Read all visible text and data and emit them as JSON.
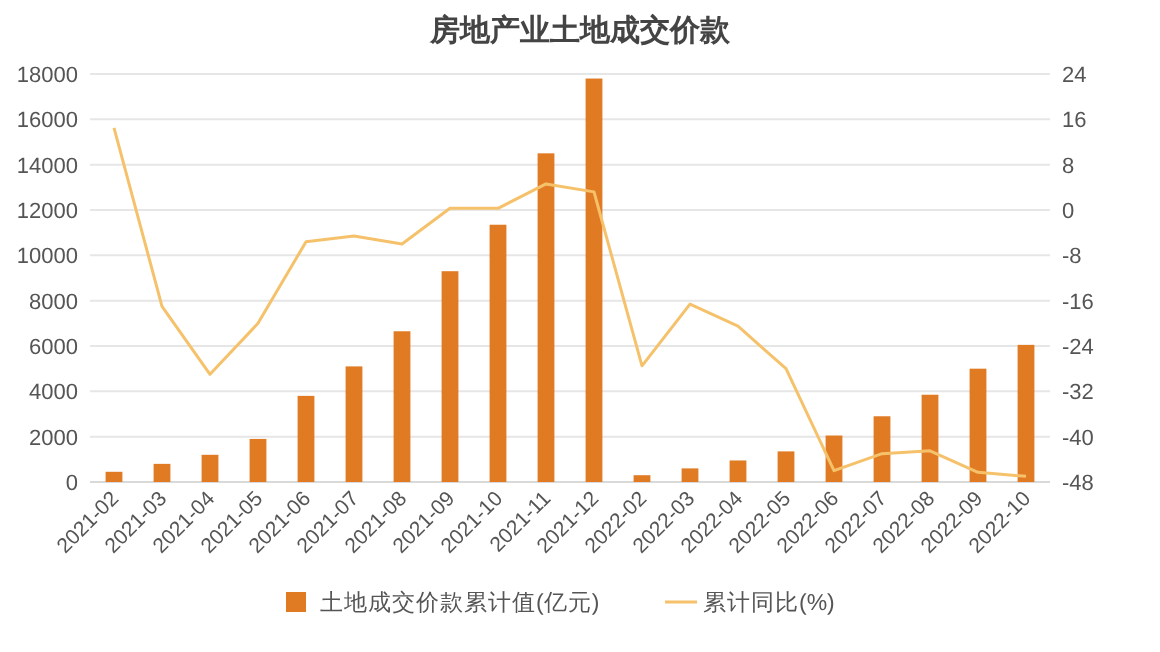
{
  "chart_data": {
    "type": "bar",
    "title": "房地产业土地成交价款",
    "categories": [
      "2021-02",
      "2021-03",
      "2021-04",
      "2021-05",
      "2021-06",
      "2021-07",
      "2021-08",
      "2021-09",
      "2021-10",
      "2021-11",
      "2021-12",
      "2022-02",
      "2022-03",
      "2022-04",
      "2022-05",
      "2022-06",
      "2022-07",
      "2022-08",
      "2022-09",
      "2022-10"
    ],
    "series": [
      {
        "name": "土地成交价款累计值(亿元)",
        "color": "#e07b24",
        "values": [
          450,
          800,
          1200,
          1900,
          3800,
          5100,
          6650,
          9300,
          11350,
          14500,
          17800,
          300,
          600,
          950,
          1350,
          2050,
          2900,
          3850,
          5000,
          6050
        ]
      },
      {
        "name": "累计同比(%)",
        "type": "line",
        "axis": "y2",
        "color": "#f5c26b",
        "values": [
          14.5,
          -17,
          -29,
          -20,
          -5.6,
          -4.6,
          -6,
          0.3,
          0.3,
          4.6,
          3.2,
          -27.5,
          -16.6,
          -20.5,
          -28,
          -46,
          -43,
          -42.5,
          -46.3,
          -47
        ]
      }
    ],
    "ylim": [
      0,
      18000
    ],
    "yticks": [
      0,
      2000,
      4000,
      6000,
      8000,
      10000,
      12000,
      14000,
      16000,
      18000
    ],
    "y2lim": [
      -48,
      24
    ],
    "y2ticks": [
      -48,
      -40,
      -32,
      -24,
      -16,
      -8,
      0,
      8,
      16,
      24
    ],
    "grid": "y",
    "legend": "bottom",
    "marker": "none",
    "line_style": "solid"
  }
}
